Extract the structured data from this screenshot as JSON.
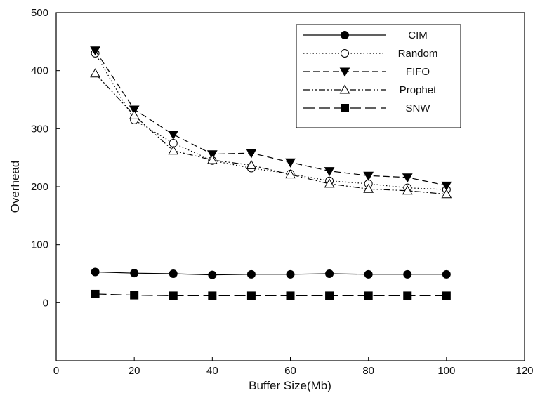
{
  "chart_data": {
    "type": "line",
    "xlabel": "Buffer Size(Mb)",
    "ylabel": "Overhead",
    "xlim": [
      0,
      120
    ],
    "ylim": [
      -100,
      500
    ],
    "xticks": [
      "0",
      "20",
      "40",
      "60",
      "80",
      "100",
      "120"
    ],
    "yticks": [
      "0",
      "100",
      "200",
      "300",
      "400",
      "500"
    ],
    "grid": false,
    "legend_position": "top-right",
    "x": [
      10,
      20,
      30,
      40,
      50,
      60,
      70,
      80,
      90,
      100
    ],
    "series": [
      {
        "name": "CIM",
        "marker": "filled-circle",
        "dash": "solid",
        "values": [
          53,
          51,
          50,
          48,
          49,
          49,
          50,
          49,
          49,
          49
        ]
      },
      {
        "name": "Random",
        "marker": "open-circle",
        "dash": "dotted",
        "values": [
          430,
          315,
          275,
          245,
          232,
          222,
          210,
          205,
          198,
          195
        ]
      },
      {
        "name": "FIFO",
        "marker": "filled-triangle-down",
        "dash": "dashed",
        "values": [
          435,
          333,
          290,
          256,
          258,
          242,
          227,
          219,
          216,
          202
        ]
      },
      {
        "name": "Prophet",
        "marker": "open-triangle-up",
        "dash": "dash-dot-dot",
        "values": [
          395,
          323,
          262,
          246,
          237,
          221,
          205,
          196,
          193,
          187
        ]
      },
      {
        "name": "SNW",
        "marker": "filled-square",
        "dash": "long-dash",
        "values": [
          15,
          13,
          12,
          12,
          12,
          12,
          12,
          12,
          12,
          12
        ]
      }
    ]
  }
}
